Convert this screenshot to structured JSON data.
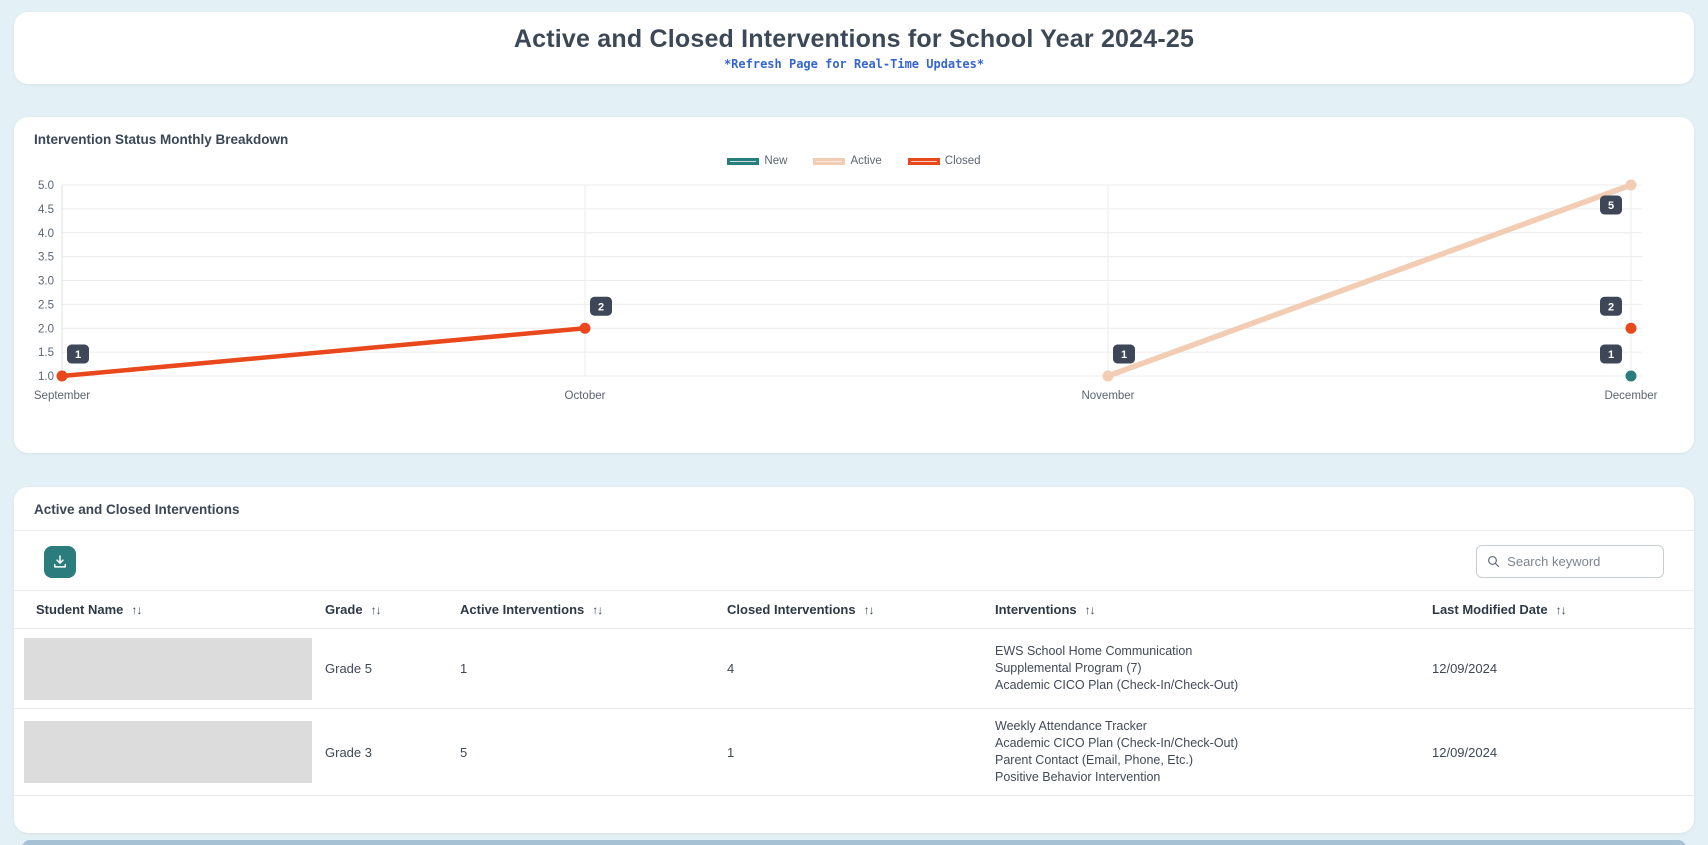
{
  "page": {
    "title": "Active and Closed Interventions for School Year 2024-25",
    "subtitle": "*Refresh Page for Real-Time Updates*"
  },
  "chart_card": {
    "title": "Intervention Status Monthly Breakdown"
  },
  "chart_data": {
    "type": "line",
    "title": "Intervention Status Monthly Breakdown",
    "categories": [
      "September",
      "October",
      "November",
      "December"
    ],
    "series": [
      {
        "name": "New",
        "color": "#2a7d7d",
        "legend_fill": "#cbdedd",
        "line_width": 4,
        "values": [
          null,
          null,
          null,
          1
        ]
      },
      {
        "name": "Active",
        "color": "#f2cdb4",
        "legend_fill": "#f9e8dc",
        "line_width": 5.5,
        "values": [
          null,
          null,
          1,
          5
        ]
      },
      {
        "name": "Closed",
        "color": "#e8481c",
        "legend_fill": "#f7d3c4",
        "line_width": 4.5,
        "values": [
          1,
          2,
          null,
          2
        ]
      }
    ],
    "ylim": [
      1.0,
      5.0
    ],
    "ytick_step": 0.5,
    "grid": true,
    "legend_position": "top-center",
    "point_labels": true
  },
  "table_card": {
    "title": "Active and Closed Interventions",
    "toolbar": {
      "download_button": "download",
      "search_placeholder": "Search keyword"
    },
    "columns": [
      {
        "label": "Student Name",
        "sortable": true
      },
      {
        "label": "Grade",
        "sortable": true
      },
      {
        "label": "Active Interventions",
        "sortable": true
      },
      {
        "label": "Closed Interventions",
        "sortable": true
      },
      {
        "label": "Interventions",
        "sortable": true
      },
      {
        "label": "Last Modified Date",
        "sortable": true
      }
    ],
    "rows": [
      {
        "student_name_redacted": true,
        "grade": "Grade 5",
        "active_interventions": "1",
        "closed_interventions": "4",
        "interventions": [
          "EWS School Home Communication",
          "Supplemental Program (7)",
          "Academic CICO Plan (Check-In/Check-Out)"
        ],
        "last_modified_date": "12/09/2024"
      },
      {
        "student_name_redacted": true,
        "grade": "Grade 3",
        "active_interventions": "5",
        "closed_interventions": "1",
        "interventions": [
          "Weekly Attendance Tracker",
          "Academic CICO Plan (Check-In/Check-Out)",
          "Parent Contact (Email, Phone, Etc.)",
          "Positive Behavior Intervention"
        ],
        "last_modified_date": "12/09/2024"
      }
    ]
  },
  "colors": {
    "page_background": "#e3f0f5",
    "accent_teal": "#2b7d7d",
    "subtitle_blue": "#3565d0",
    "badge": "#3d4757",
    "closed": "#e8481c",
    "active": "#f2cdb4",
    "new": "#2a7d7d",
    "redaction_gray": "#dcdcdc",
    "bottom_bar": "#a6c1d3",
    "gridline": "#ececec",
    "axis_text": "#5a6470"
  }
}
